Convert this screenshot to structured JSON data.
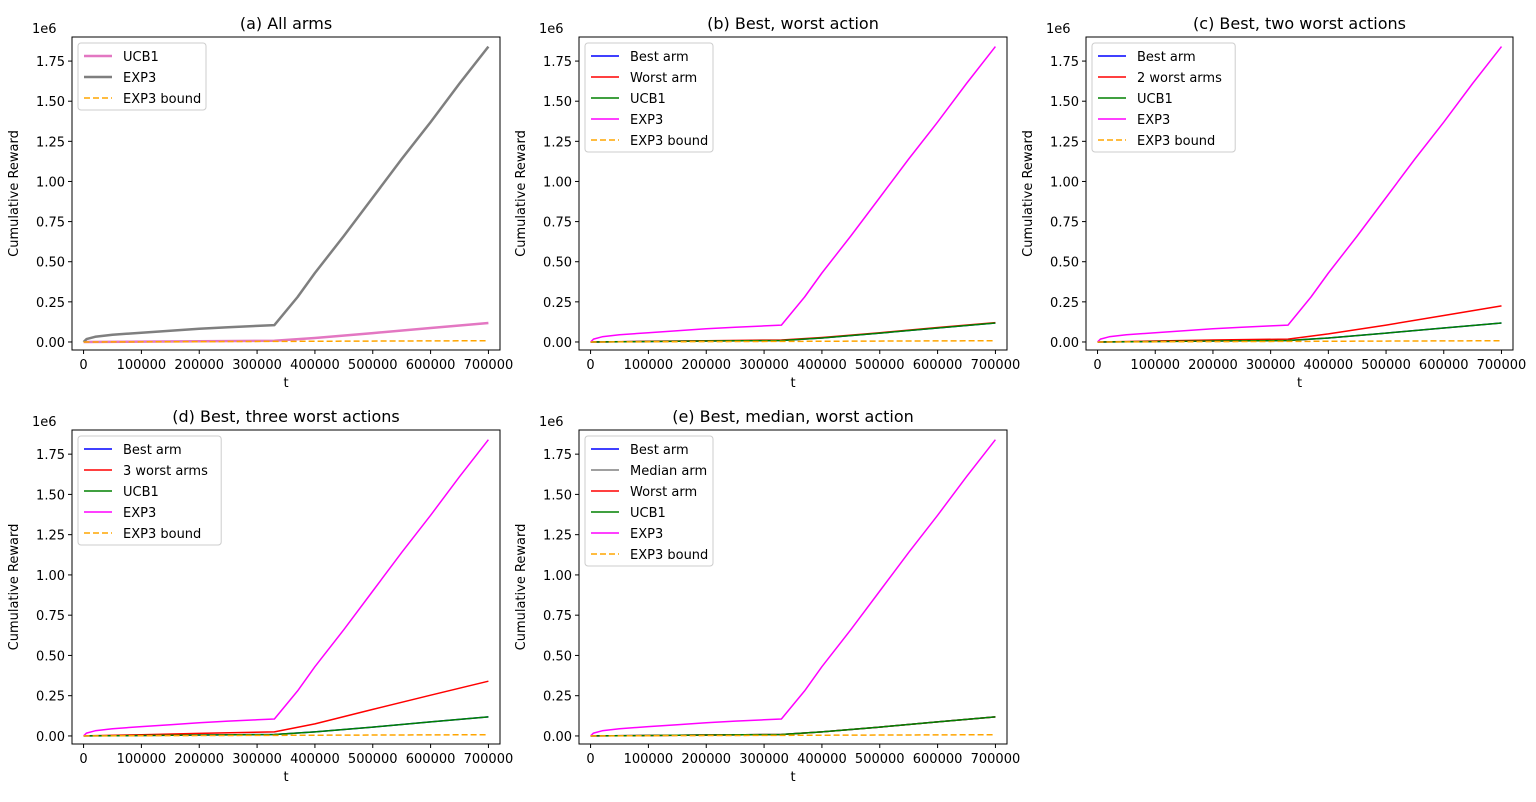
{
  "chart_data": [
    {
      "type": "line",
      "title": "(a) All arms",
      "xlabel": "t",
      "ylabel": "Cumulative Reward",
      "y_offset_label": "1e6",
      "xlim": [
        -20000,
        720000
      ],
      "ylim": [
        -0.05,
        1.9
      ],
      "xticks": [
        0,
        100000,
        200000,
        300000,
        400000,
        500000,
        600000,
        700000
      ],
      "xtick_labels": [
        "0",
        "100000",
        "200000",
        "300000",
        "400000",
        "500000",
        "600000",
        "700000"
      ],
      "yticks": [
        0.0,
        0.25,
        0.5,
        0.75,
        1.0,
        1.25,
        1.5,
        1.75
      ],
      "ytick_labels": [
        "0.00",
        "0.25",
        "0.50",
        "0.75",
        "1.00",
        "1.25",
        "1.50",
        "1.75"
      ],
      "legend_position": "top-left",
      "series": [
        {
          "name": "UCB1",
          "color": "#e377c2",
          "dash": "solid",
          "width": 2.5,
          "x": [
            0,
            100000,
            200000,
            330000,
            400000,
            500000,
            600000,
            700000
          ],
          "y": [
            0.0,
            0.0025,
            0.005,
            0.008,
            0.025,
            0.055,
            0.087,
            0.118
          ]
        },
        {
          "name": "EXP3",
          "color": "#7f7f7f",
          "dash": "solid",
          "width": 2.5,
          "x": [
            0,
            5000,
            20000,
            50000,
            100000,
            150000,
            200000,
            250000,
            300000,
            330000,
            370000,
            400000,
            450000,
            500000,
            550000,
            600000,
            650000,
            700000
          ],
          "y": [
            0.0,
            0.018,
            0.032,
            0.045,
            0.058,
            0.07,
            0.082,
            0.092,
            0.1,
            0.105,
            0.28,
            0.43,
            0.66,
            0.9,
            1.14,
            1.37,
            1.61,
            1.84
          ]
        },
        {
          "name": "EXP3 bound",
          "color": "#ffa500",
          "dash": "dashed",
          "width": 1.5,
          "x": [
            0,
            700000
          ],
          "y": [
            0.0,
            0.008
          ]
        }
      ]
    },
    {
      "type": "line",
      "title": "(b) Best, worst action",
      "xlabel": "t",
      "ylabel": "Cumulative Reward",
      "y_offset_label": "1e6",
      "xlim": [
        -20000,
        720000
      ],
      "ylim": [
        -0.05,
        1.9
      ],
      "xticks": [
        0,
        100000,
        200000,
        300000,
        400000,
        500000,
        600000,
        700000
      ],
      "xtick_labels": [
        "0",
        "100000",
        "200000",
        "300000",
        "400000",
        "500000",
        "600000",
        "700000"
      ],
      "yticks": [
        0.0,
        0.25,
        0.5,
        0.75,
        1.0,
        1.25,
        1.5,
        1.75
      ],
      "ytick_labels": [
        "0.00",
        "0.25",
        "0.50",
        "0.75",
        "1.00",
        "1.25",
        "1.50",
        "1.75"
      ],
      "legend_position": "top-left",
      "series": [
        {
          "name": "Best arm",
          "color": "#0000ff",
          "dash": "solid",
          "width": 1.5,
          "x": [
            0,
            100000,
            200000,
            330000,
            400000,
            500000,
            600000,
            700000
          ],
          "y": [
            0.0,
            0.003,
            0.006,
            0.009,
            0.025,
            0.055,
            0.087,
            0.118
          ]
        },
        {
          "name": "Worst arm",
          "color": "#ff0000",
          "dash": "solid",
          "width": 1.5,
          "x": [
            0,
            100000,
            200000,
            330000,
            400000,
            500000,
            600000,
            700000
          ],
          "y": [
            0.0,
            0.004,
            0.008,
            0.012,
            0.028,
            0.058,
            0.09,
            0.121
          ]
        },
        {
          "name": "UCB1",
          "color": "#008000",
          "dash": "solid",
          "width": 1.5,
          "x": [
            0,
            100000,
            200000,
            330000,
            400000,
            500000,
            600000,
            700000
          ],
          "y": [
            0.0,
            0.003,
            0.006,
            0.009,
            0.025,
            0.055,
            0.087,
            0.118
          ]
        },
        {
          "name": "EXP3",
          "color": "#ff00ff",
          "dash": "solid",
          "width": 1.5,
          "x": [
            0,
            5000,
            20000,
            50000,
            100000,
            150000,
            200000,
            250000,
            300000,
            330000,
            370000,
            400000,
            450000,
            500000,
            550000,
            600000,
            650000,
            700000
          ],
          "y": [
            0.0,
            0.018,
            0.032,
            0.045,
            0.058,
            0.07,
            0.082,
            0.092,
            0.1,
            0.105,
            0.28,
            0.43,
            0.66,
            0.9,
            1.14,
            1.37,
            1.61,
            1.84
          ]
        },
        {
          "name": "EXP3 bound",
          "color": "#ffa500",
          "dash": "dashed",
          "width": 1.5,
          "x": [
            0,
            700000
          ],
          "y": [
            0.0,
            0.008
          ]
        }
      ]
    },
    {
      "type": "line",
      "title": "(c) Best, two worst actions",
      "xlabel": "t",
      "ylabel": "Cumulative Reward",
      "y_offset_label": "1e6",
      "xlim": [
        -20000,
        720000
      ],
      "ylim": [
        -0.05,
        1.9
      ],
      "xticks": [
        0,
        100000,
        200000,
        300000,
        400000,
        500000,
        600000,
        700000
      ],
      "xtick_labels": [
        "0",
        "100000",
        "200000",
        "300000",
        "400000",
        "500000",
        "600000",
        "700000"
      ],
      "yticks": [
        0.0,
        0.25,
        0.5,
        0.75,
        1.0,
        1.25,
        1.5,
        1.75
      ],
      "ytick_labels": [
        "0.00",
        "0.25",
        "0.50",
        "0.75",
        "1.00",
        "1.25",
        "1.50",
        "1.75"
      ],
      "legend_position": "top-left",
      "series": [
        {
          "name": "Best arm",
          "color": "#0000ff",
          "dash": "solid",
          "width": 1.5,
          "x": [
            0,
            100000,
            200000,
            330000,
            400000,
            500000,
            600000,
            700000
          ],
          "y": [
            0.0,
            0.003,
            0.006,
            0.009,
            0.025,
            0.055,
            0.087,
            0.118
          ]
        },
        {
          "name": "2 worst arms",
          "color": "#ff0000",
          "dash": "solid",
          "width": 1.5,
          "x": [
            0,
            100000,
            200000,
            330000,
            400000,
            500000,
            600000,
            700000
          ],
          "y": [
            0.0,
            0.006,
            0.012,
            0.018,
            0.05,
            0.105,
            0.165,
            0.225
          ]
        },
        {
          "name": "UCB1",
          "color": "#008000",
          "dash": "solid",
          "width": 1.5,
          "x": [
            0,
            100000,
            200000,
            330000,
            400000,
            500000,
            600000,
            700000
          ],
          "y": [
            0.0,
            0.003,
            0.006,
            0.009,
            0.025,
            0.055,
            0.087,
            0.118
          ]
        },
        {
          "name": "EXP3",
          "color": "#ff00ff",
          "dash": "solid",
          "width": 1.5,
          "x": [
            0,
            5000,
            20000,
            50000,
            100000,
            150000,
            200000,
            250000,
            300000,
            330000,
            370000,
            400000,
            450000,
            500000,
            550000,
            600000,
            650000,
            700000
          ],
          "y": [
            0.0,
            0.018,
            0.032,
            0.045,
            0.058,
            0.07,
            0.082,
            0.092,
            0.1,
            0.105,
            0.28,
            0.43,
            0.66,
            0.9,
            1.14,
            1.37,
            1.61,
            1.84
          ]
        },
        {
          "name": "EXP3 bound",
          "color": "#ffa500",
          "dash": "dashed",
          "width": 1.5,
          "x": [
            0,
            700000
          ],
          "y": [
            0.0,
            0.008
          ]
        }
      ]
    },
    {
      "type": "line",
      "title": "(d) Best, three worst actions",
      "xlabel": "t",
      "ylabel": "Cumulative Reward",
      "y_offset_label": "1e6",
      "xlim": [
        -20000,
        720000
      ],
      "ylim": [
        -0.05,
        1.9
      ],
      "xticks": [
        0,
        100000,
        200000,
        300000,
        400000,
        500000,
        600000,
        700000
      ],
      "xtick_labels": [
        "0",
        "100000",
        "200000",
        "300000",
        "400000",
        "500000",
        "600000",
        "700000"
      ],
      "yticks": [
        0.0,
        0.25,
        0.5,
        0.75,
        1.0,
        1.25,
        1.5,
        1.75
      ],
      "ytick_labels": [
        "0.00",
        "0.25",
        "0.50",
        "0.75",
        "1.00",
        "1.25",
        "1.50",
        "1.75"
      ],
      "legend_position": "top-left",
      "series": [
        {
          "name": "Best arm",
          "color": "#0000ff",
          "dash": "solid",
          "width": 1.5,
          "x": [
            0,
            100000,
            200000,
            330000,
            400000,
            500000,
            600000,
            700000
          ],
          "y": [
            0.0,
            0.003,
            0.006,
            0.009,
            0.025,
            0.055,
            0.087,
            0.118
          ]
        },
        {
          "name": "3 worst arms",
          "color": "#ff0000",
          "dash": "solid",
          "width": 1.5,
          "x": [
            0,
            100000,
            200000,
            330000,
            400000,
            500000,
            600000,
            700000
          ],
          "y": [
            0.0,
            0.008,
            0.016,
            0.025,
            0.075,
            0.165,
            0.253,
            0.34
          ]
        },
        {
          "name": "UCB1",
          "color": "#008000",
          "dash": "solid",
          "width": 1.5,
          "x": [
            0,
            100000,
            200000,
            330000,
            400000,
            500000,
            600000,
            700000
          ],
          "y": [
            0.0,
            0.003,
            0.006,
            0.009,
            0.025,
            0.055,
            0.087,
            0.118
          ]
        },
        {
          "name": "EXP3",
          "color": "#ff00ff",
          "dash": "solid",
          "width": 1.5,
          "x": [
            0,
            5000,
            20000,
            50000,
            100000,
            150000,
            200000,
            250000,
            300000,
            330000,
            370000,
            400000,
            450000,
            500000,
            550000,
            600000,
            650000,
            700000
          ],
          "y": [
            0.0,
            0.018,
            0.032,
            0.045,
            0.058,
            0.07,
            0.082,
            0.092,
            0.1,
            0.105,
            0.28,
            0.43,
            0.66,
            0.9,
            1.14,
            1.37,
            1.61,
            1.84
          ]
        },
        {
          "name": "EXP3 bound",
          "color": "#ffa500",
          "dash": "dashed",
          "width": 1.5,
          "x": [
            0,
            700000
          ],
          "y": [
            0.0,
            0.008
          ]
        }
      ]
    },
    {
      "type": "line",
      "title": "(e) Best, median, worst action",
      "xlabel": "t",
      "ylabel": "Cumulative Reward",
      "y_offset_label": "1e6",
      "xlim": [
        -20000,
        720000
      ],
      "ylim": [
        -0.05,
        1.9
      ],
      "xticks": [
        0,
        100000,
        200000,
        300000,
        400000,
        500000,
        600000,
        700000
      ],
      "xtick_labels": [
        "0",
        "100000",
        "200000",
        "300000",
        "400000",
        "500000",
        "600000",
        "700000"
      ],
      "yticks": [
        0.0,
        0.25,
        0.5,
        0.75,
        1.0,
        1.25,
        1.5,
        1.75
      ],
      "ytick_labels": [
        "0.00",
        "0.25",
        "0.50",
        "0.75",
        "1.00",
        "1.25",
        "1.50",
        "1.75"
      ],
      "legend_position": "top-left",
      "series": [
        {
          "name": "Best arm",
          "color": "#0000ff",
          "dash": "solid",
          "width": 1.5,
          "x": [
            0,
            100000,
            200000,
            330000,
            400000,
            500000,
            600000,
            700000
          ],
          "y": [
            0.0,
            0.003,
            0.006,
            0.009,
            0.025,
            0.055,
            0.087,
            0.118
          ]
        },
        {
          "name": "Median arm",
          "color": "#808080",
          "dash": "solid",
          "width": 1.5,
          "x": [
            0,
            100000,
            200000,
            330000,
            400000,
            500000,
            600000,
            700000
          ],
          "y": [
            0.0,
            0.003,
            0.006,
            0.009,
            0.025,
            0.055,
            0.087,
            0.118
          ]
        },
        {
          "name": "Worst arm",
          "color": "#ff0000",
          "dash": "solid",
          "width": 1.5,
          "x": [
            0,
            100000,
            200000,
            330000,
            400000,
            500000,
            600000,
            700000
          ],
          "y": [
            0.0,
            0.003,
            0.006,
            0.009,
            0.025,
            0.055,
            0.087,
            0.118
          ]
        },
        {
          "name": "UCB1",
          "color": "#008000",
          "dash": "solid",
          "width": 1.5,
          "x": [
            0,
            100000,
            200000,
            330000,
            400000,
            500000,
            600000,
            700000
          ],
          "y": [
            0.0,
            0.003,
            0.006,
            0.009,
            0.025,
            0.055,
            0.087,
            0.118
          ]
        },
        {
          "name": "EXP3",
          "color": "#ff00ff",
          "dash": "solid",
          "width": 1.5,
          "x": [
            0,
            5000,
            20000,
            50000,
            100000,
            150000,
            200000,
            250000,
            300000,
            330000,
            370000,
            400000,
            450000,
            500000,
            550000,
            600000,
            650000,
            700000
          ],
          "y": [
            0.0,
            0.018,
            0.032,
            0.045,
            0.058,
            0.07,
            0.082,
            0.092,
            0.1,
            0.105,
            0.28,
            0.43,
            0.66,
            0.9,
            1.14,
            1.37,
            1.61,
            1.84
          ]
        },
        {
          "name": "EXP3 bound",
          "color": "#ffa500",
          "dash": "dashed",
          "width": 1.5,
          "x": [
            0,
            700000
          ],
          "y": [
            0.0,
            0.008
          ]
        }
      ]
    }
  ]
}
